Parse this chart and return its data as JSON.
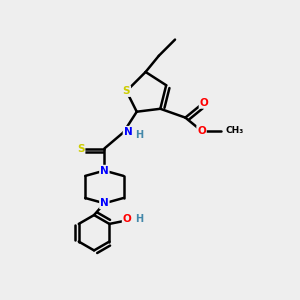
{
  "background_color": "#eeeeee",
  "atom_colors": {
    "S": "#cccc00",
    "N": "#0000ff",
    "O": "#ff0000",
    "C": "#000000",
    "H": "#4488aa"
  },
  "bond_color": "#000000",
  "bond_width": 1.8
}
